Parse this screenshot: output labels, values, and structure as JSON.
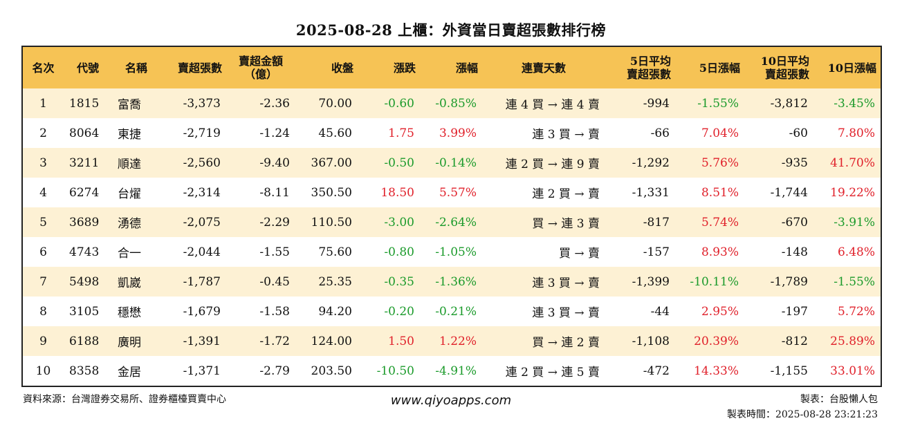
{
  "title": "2025-08-28 上櫃：外資當日賣超張數排行榜",
  "headers": {
    "rank": "名次",
    "code": "代號",
    "name": "名稱",
    "sell_shares": "賣超張數",
    "sell_amount_1": "賣超金額",
    "sell_amount_2": "（億）",
    "close": "收盤",
    "change": "漲跌",
    "pct": "漲幅",
    "streak": "連賣天數",
    "avg5_1": "5日平均",
    "avg5_2": "賣超張數",
    "pct5": "5日漲幅",
    "avg10_1": "10日平均",
    "avg10_2": "賣超張數",
    "pct10": "10日漲幅"
  },
  "rows": [
    {
      "rank": "1",
      "code": "1815",
      "name": "富喬",
      "sell_shares": "-3,373",
      "sell_amount": "-2.36",
      "close": "70.00",
      "change": "-0.60",
      "pct": "-0.85%",
      "streak": "連 4 買 → 連 4 賣",
      "avg5": "-994",
      "pct5": "-1.55%",
      "avg10": "-3,812",
      "pct10": "-3.45%"
    },
    {
      "rank": "2",
      "code": "8064",
      "name": "東捷",
      "sell_shares": "-2,719",
      "sell_amount": "-1.24",
      "close": "45.60",
      "change": "1.75",
      "pct": "3.99%",
      "streak": "連 3 買 → 賣",
      "avg5": "-66",
      "pct5": "7.04%",
      "avg10": "-60",
      "pct10": "7.80%"
    },
    {
      "rank": "3",
      "code": "3211",
      "name": "順達",
      "sell_shares": "-2,560",
      "sell_amount": "-9.40",
      "close": "367.00",
      "change": "-0.50",
      "pct": "-0.14%",
      "streak": "連 2 買 → 連 9 賣",
      "avg5": "-1,292",
      "pct5": "5.76%",
      "avg10": "-935",
      "pct10": "41.70%"
    },
    {
      "rank": "4",
      "code": "6274",
      "name": "台燿",
      "sell_shares": "-2,314",
      "sell_amount": "-8.11",
      "close": "350.50",
      "change": "18.50",
      "pct": "5.57%",
      "streak": "連 2 買 → 賣",
      "avg5": "-1,331",
      "pct5": "8.51%",
      "avg10": "-1,744",
      "pct10": "19.22%"
    },
    {
      "rank": "5",
      "code": "3689",
      "name": "湧德",
      "sell_shares": "-2,075",
      "sell_amount": "-2.29",
      "close": "110.50",
      "change": "-3.00",
      "pct": "-2.64%",
      "streak": "買 → 連 3 賣",
      "avg5": "-817",
      "pct5": "5.74%",
      "avg10": "-670",
      "pct10": "-3.91%"
    },
    {
      "rank": "6",
      "code": "4743",
      "name": "合一",
      "sell_shares": "-2,044",
      "sell_amount": "-1.55",
      "close": "75.60",
      "change": "-0.80",
      "pct": "-1.05%",
      "streak": "買 → 賣",
      "avg5": "-157",
      "pct5": "8.93%",
      "avg10": "-148",
      "pct10": "6.48%"
    },
    {
      "rank": "7",
      "code": "5498",
      "name": "凱崴",
      "sell_shares": "-1,787",
      "sell_amount": "-0.45",
      "close": "25.35",
      "change": "-0.35",
      "pct": "-1.36%",
      "streak": "連 3 買 → 賣",
      "avg5": "-1,399",
      "pct5": "-10.11%",
      "avg10": "-1,789",
      "pct10": "-1.55%"
    },
    {
      "rank": "8",
      "code": "3105",
      "name": "穩懋",
      "sell_shares": "-1,679",
      "sell_amount": "-1.58",
      "close": "94.20",
      "change": "-0.20",
      "pct": "-0.21%",
      "streak": "連 3 買 → 賣",
      "avg5": "-44",
      "pct5": "2.95%",
      "avg10": "-197",
      "pct10": "5.72%"
    },
    {
      "rank": "9",
      "code": "6188",
      "name": "廣明",
      "sell_shares": "-1,391",
      "sell_amount": "-1.72",
      "close": "124.00",
      "change": "1.50",
      "pct": "1.22%",
      "streak": "買 → 連 2 賣",
      "avg5": "-1,108",
      "pct5": "20.39%",
      "avg10": "-812",
      "pct10": "25.89%"
    },
    {
      "rank": "10",
      "code": "8358",
      "name": "金居",
      "sell_shares": "-1,371",
      "sell_amount": "-2.79",
      "close": "203.50",
      "change": "-10.50",
      "pct": "-4.91%",
      "streak": "連 2 買 → 連 5 賣",
      "avg5": "-472",
      "pct5": "14.33%",
      "avg10": "-1,155",
      "pct10": "33.01%"
    }
  ],
  "footer": {
    "source": "資料來源：台灣證券交易所、證券櫃檯買賣中心",
    "website": "www.qiyoapps.com",
    "maker": "製表：台股懶人包",
    "time": "製表時間：2025-08-28 23:21:23"
  },
  "colors": {
    "header_bg": "#f6c355",
    "row_odd_bg": "#fdf1d4",
    "up": "#e0202a",
    "down": "#1a9a2a"
  }
}
